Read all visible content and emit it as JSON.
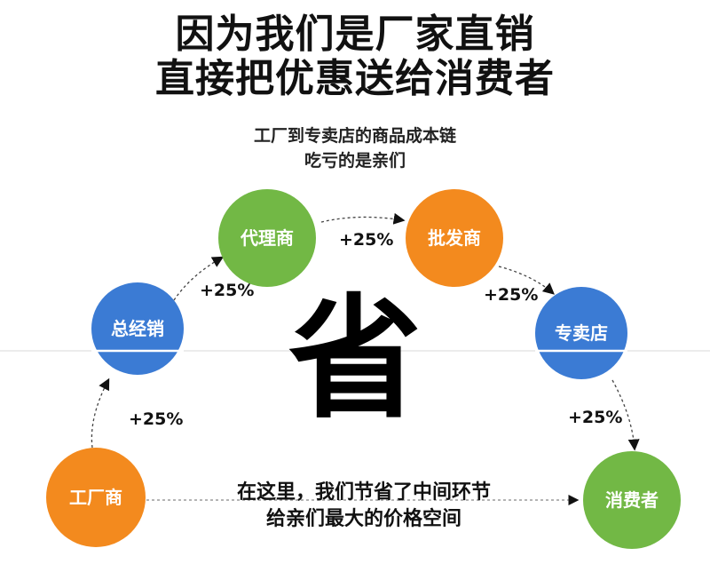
{
  "title_lines": [
    "因为我们是厂家直销",
    "直接把优惠送给消费者"
  ],
  "subtitle_lines": [
    "工厂到专卖店的商品成本链",
    "吃亏的是亲们"
  ],
  "center_character": "省",
  "bottom_note_lines": [
    "在这里，我们节省了中间环节",
    "给亲们最大的价格空间"
  ],
  "colors": {
    "green": "#72b845",
    "orange": "#f38a1e",
    "blue": "#3b7bd4"
  },
  "nodes": [
    {
      "label": "工厂商",
      "color": "orange"
    },
    {
      "label": "总经销",
      "color": "blue"
    },
    {
      "label": "代理商",
      "color": "green"
    },
    {
      "label": "批发商",
      "color": "orange"
    },
    {
      "label": "专卖店",
      "color": "blue"
    },
    {
      "label": "消费者",
      "color": "green"
    }
  ],
  "markups": [
    "+25%",
    "+25%",
    "+25%",
    "+25%",
    "+25%"
  ]
}
